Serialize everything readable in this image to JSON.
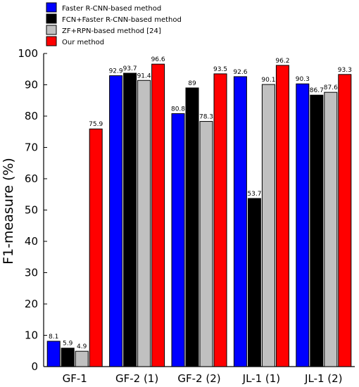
{
  "chart_data": {
    "type": "bar",
    "title": "",
    "xlabel": "",
    "ylabel": "F1-measure (%)",
    "ylim": [
      0,
      100
    ],
    "yticks": [
      "0",
      "10",
      "20",
      "30",
      "40",
      "50",
      "60",
      "70",
      "80",
      "90",
      "100"
    ],
    "grid": false,
    "legend_position": "top-left",
    "categories": [
      "GF-1",
      "GF-2 (1)",
      "GF-2 (2)",
      "JL-1 (1)",
      "JL-1 (2)"
    ],
    "series": [
      {
        "name": "Faster R-CNN-based method",
        "color": "#0000ff",
        "values": [
          8.1,
          92.9,
          80.8,
          92.6,
          90.3
        ],
        "labels": [
          "8.1",
          "92.9",
          "80.8",
          "92.6",
          "90.3"
        ]
      },
      {
        "name": "FCN+Faster R-CNN-based method",
        "color": "#000000",
        "values": [
          5.9,
          93.7,
          89,
          53.7,
          86.7
        ],
        "labels": [
          "5.9",
          "93.7",
          "89",
          "53.7",
          "86.7"
        ]
      },
      {
        "name": "ZF+RPN-based method [24]",
        "color": "#c0c0c0",
        "values": [
          4.9,
          91.4,
          78.3,
          90.1,
          87.6
        ],
        "labels": [
          "4.9",
          "91.4",
          "78.3",
          "90.1",
          "87.6"
        ]
      },
      {
        "name": "Our method",
        "color": "#ff0000",
        "values": [
          75.9,
          96.6,
          93.5,
          96.2,
          93.3
        ],
        "labels": [
          "75.9",
          "96.6",
          "93.5",
          "96.2",
          "93.3"
        ]
      }
    ]
  }
}
